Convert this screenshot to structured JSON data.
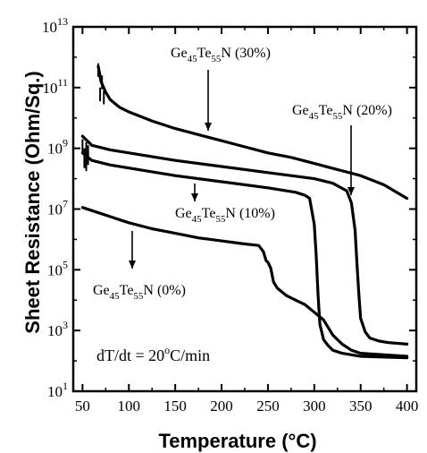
{
  "chart_data": {
    "type": "line",
    "xlabel": "Temperature (°C)",
    "ylabel": "Sheet Resistance (Ohm/Sq.)",
    "xlim": [
      40,
      410
    ],
    "ylim_log10": [
      1,
      13
    ],
    "y_scale": "log",
    "grid": false,
    "x_ticks": [
      "50",
      "100",
      "150",
      "200",
      "250",
      "300",
      "350",
      "400"
    ],
    "y_ticks": [
      {
        "base": "10",
        "exp": "1"
      },
      {
        "base": "10",
        "exp": "3"
      },
      {
        "base": "10",
        "exp": "5"
      },
      {
        "base": "10",
        "exp": "7"
      },
      {
        "base": "10",
        "exp": "9"
      },
      {
        "base": "10",
        "exp": "11"
      },
      {
        "base": "10",
        "exp": "13"
      }
    ],
    "annotation": {
      "prefix": "dT/dt = 20",
      "suffix": "C/min"
    },
    "series": [
      {
        "name": "Ge45Te55N (0%)",
        "label": {
          "ge": "Ge",
          "ge_sub": "45",
          "te": "Te",
          "te_sub": "55",
          "rest": "N (0%)"
        },
        "x": [
          50,
          60,
          80,
          100,
          125,
          150,
          175,
          200,
          225,
          240,
          245,
          248,
          250,
          253,
          256,
          260,
          270,
          280,
          290,
          300,
          310,
          320,
          330,
          340,
          350,
          400
        ],
        "y_log10": [
          7.05,
          6.95,
          6.75,
          6.55,
          6.35,
          6.2,
          6.05,
          5.95,
          5.85,
          5.8,
          5.6,
          5.3,
          5.25,
          5.05,
          4.6,
          4.4,
          4.15,
          4.0,
          3.85,
          3.6,
          3.35,
          2.85,
          2.55,
          2.35,
          2.25,
          2.15
        ]
      },
      {
        "name": "Ge45Te55N (10%)",
        "label": {
          "ge": "Ge",
          "ge_sub": "45",
          "te": "Te",
          "te_sub": "55",
          "rest": "N (10%)"
        },
        "x": [
          50,
          60,
          80,
          100,
          150,
          200,
          250,
          280,
          290,
          295,
          300,
          302,
          304,
          306,
          310,
          315,
          320,
          330,
          340,
          350,
          400
        ],
        "y_log10": [
          8.85,
          8.6,
          8.45,
          8.35,
          8.1,
          7.9,
          7.7,
          7.55,
          7.45,
          7.35,
          6.5,
          5.5,
          4.2,
          3.2,
          2.7,
          2.5,
          2.35,
          2.25,
          2.2,
          2.15,
          2.1
        ]
      },
      {
        "name": "Ge45Te55N (20%)",
        "label": {
          "ge": "Ge",
          "ge_sub": "45",
          "te": "Te",
          "te_sub": "55",
          "rest": "N (20%)"
        },
        "x": [
          50,
          60,
          80,
          100,
          150,
          200,
          250,
          300,
          320,
          335,
          340,
          344,
          346,
          348,
          350,
          355,
          360,
          370,
          380,
          400
        ],
        "y_log10": [
          9.4,
          9.1,
          8.95,
          8.85,
          8.6,
          8.4,
          8.2,
          8.0,
          7.85,
          7.6,
          7.2,
          6.3,
          5.2,
          4.2,
          3.4,
          2.95,
          2.75,
          2.65,
          2.6,
          2.55
        ]
      },
      {
        "name": "Ge45Te55N (30%)",
        "label": {
          "ge": "Ge",
          "ge_sub": "45",
          "te": "Te",
          "te_sub": "55",
          "rest": "N (30%)"
        },
        "x": [
          67,
          70,
          75,
          80,
          90,
          100,
          125,
          150,
          175,
          200,
          225,
          250,
          275,
          300,
          325,
          350,
          375,
          400
        ],
        "y_log10": [
          11.7,
          11.2,
          10.85,
          10.6,
          10.35,
          10.2,
          9.9,
          9.65,
          9.45,
          9.25,
          9.05,
          8.85,
          8.7,
          8.5,
          8.3,
          8.1,
          7.8,
          7.35
        ]
      }
    ]
  }
}
